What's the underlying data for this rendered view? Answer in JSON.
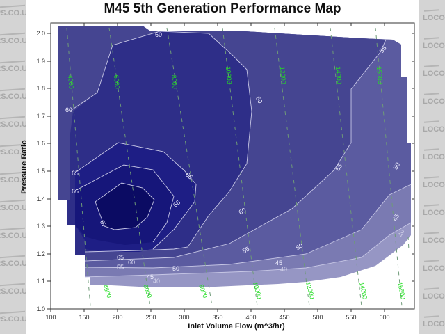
{
  "chart_data": {
    "type": "contour",
    "title": "M45 5th Generation Performance Map",
    "xlabel": "Inlet Volume Flow (m^3/hr)",
    "ylabel": "Pressure Ratio",
    "xlim": [
      100,
      630
    ],
    "ylim": [
      1.0,
      2.05
    ],
    "x_ticks": [
      "100",
      "150",
      "200",
      "250",
      "300",
      "350",
      "400",
      "450",
      "500",
      "550",
      "600"
    ],
    "y_ticks": [
      "1.0",
      "1.1",
      "1.2",
      "1.3",
      "1.4",
      "1.5",
      "1.6",
      "1.7",
      "1.8",
      "1.9",
      "2.0"
    ],
    "grid": false,
    "efficiency_contour_levels": [
      40,
      45,
      50,
      55,
      60,
      65,
      66,
      67
    ],
    "efficiency_labels": [
      "67",
      "66",
      "65",
      "60",
      "55",
      "50",
      "45",
      "40"
    ],
    "speed_lines_rpm": [
      {
        "label": "4000",
        "position": "top"
      },
      {
        "label": "6000",
        "position": "top"
      },
      {
        "label": "8000",
        "position": "top"
      },
      {
        "label": "10000",
        "position": "top"
      },
      {
        "label": "12000",
        "position": "top"
      },
      {
        "label": "14000",
        "position": "top"
      },
      {
        "label": "15500",
        "position": "top"
      },
      {
        "label": "4500",
        "position": "bottom"
      },
      {
        "label": "6000",
        "position": "bottom"
      },
      {
        "label": "8000",
        "position": "bottom"
      },
      {
        "label": "10000",
        "position": "bottom"
      },
      {
        "label": "12000",
        "position": "bottom"
      },
      {
        "label": "14000",
        "position": "bottom"
      },
      {
        "label": "15500",
        "position": "bottom"
      }
    ],
    "colors": {
      "eff_67_plus": "#0b0b63",
      "eff_66": "#16167a",
      "eff_65": "#1e1e85",
      "eff_60": "#2e2e88",
      "eff_55": "#454591",
      "eff_50": "#5b5ba0",
      "eff_45": "#7a7ab2",
      "eff_40": "#9696c4",
      "contour_line": "#c8c8e6",
      "speed_line": "#6e9a78",
      "speed_label": "#22dd22",
      "watermark_bg": "#d4d4d4"
    }
  },
  "watermark": {
    "left_text": "DERS.CO.U",
    "right_text": "LOCOST"
  }
}
